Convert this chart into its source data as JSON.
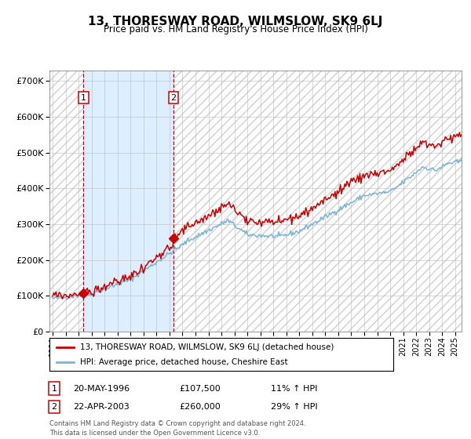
{
  "title": "13, THORESWAY ROAD, WILMSLOW, SK9 6LJ",
  "subtitle": "Price paid vs. HM Land Registry's House Price Index (HPI)",
  "legend_line1": "13, THORESWAY ROAD, WILMSLOW, SK9 6LJ (detached house)",
  "legend_line2": "HPI: Average price, detached house, Cheshire East",
  "transaction1_date": "20-MAY-1996",
  "transaction1_price": 107500,
  "transaction1_hpi": "11% ↑ HPI",
  "transaction2_date": "22-APR-2003",
  "transaction2_price": 260000,
  "transaction2_hpi": "29% ↑ HPI",
  "footer": "Contains HM Land Registry data © Crown copyright and database right 2024.\nThis data is licensed under the Open Government Licence v3.0.",
  "xlim_start": 1993.75,
  "xlim_end": 2025.5,
  "ylim_min": 0,
  "ylim_max": 730000,
  "hpi_color": "#7ab4d8",
  "price_color": "#cc0000",
  "vline_color": "#cc0000",
  "shade_color": "#ddeeff",
  "bg_color": "#ffffff",
  "grid_color": "#bbbbbb",
  "marker1_year": 1996.38,
  "marker1_price": 107500,
  "marker2_year": 2003.31,
  "marker2_price": 260000
}
